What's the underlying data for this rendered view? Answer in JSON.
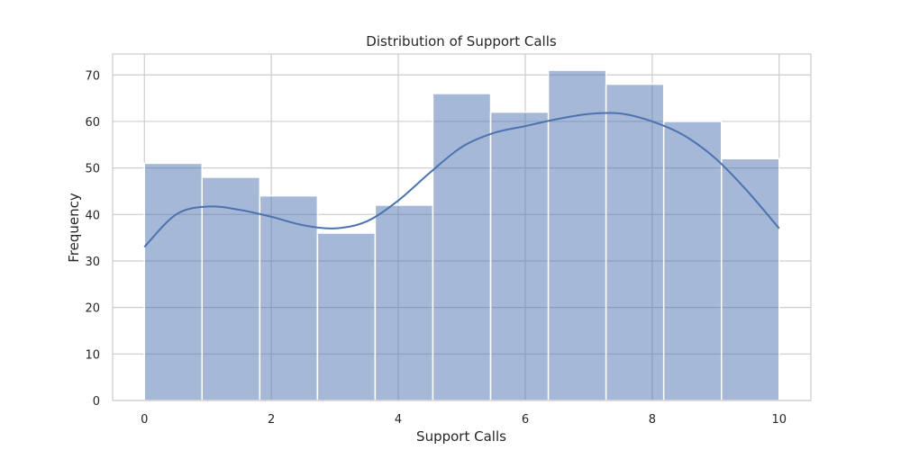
{
  "chart_data": {
    "type": "bar",
    "title": "Distribution of Support Calls",
    "xlabel": "Support Calls",
    "ylabel": "Frequency",
    "bins": 11,
    "bin_edges": [
      0,
      0.909,
      1.818,
      2.727,
      3.636,
      4.545,
      5.455,
      6.364,
      7.273,
      8.182,
      9.091,
      10
    ],
    "values": [
      51,
      48,
      44,
      36,
      42,
      66,
      62,
      71,
      68,
      60,
      52
    ],
    "kde_curve": {
      "x": [
        0,
        0.5,
        1.0,
        1.5,
        2.0,
        2.5,
        3.0,
        3.5,
        4.0,
        4.5,
        5.0,
        5.5,
        6.0,
        6.5,
        7.0,
        7.5,
        8.0,
        8.5,
        9.0,
        9.5,
        10.0
      ],
      "y": [
        33,
        40,
        41.7,
        41,
        39.5,
        37.7,
        37,
        38.5,
        43,
        49,
        54.5,
        57.5,
        59,
        60.5,
        61.6,
        61.7,
        60,
        57,
        52,
        45,
        37
      ]
    },
    "xlim": [
      -0.5,
      10.5
    ],
    "ylim": [
      0,
      74.5
    ],
    "xticks": [
      0,
      2,
      4,
      6,
      8,
      10
    ],
    "yticks": [
      0,
      10,
      20,
      30,
      40,
      50,
      60,
      70
    ],
    "grid": true,
    "bar_color": "#4c72b0",
    "line_color": "#4c72b0"
  }
}
